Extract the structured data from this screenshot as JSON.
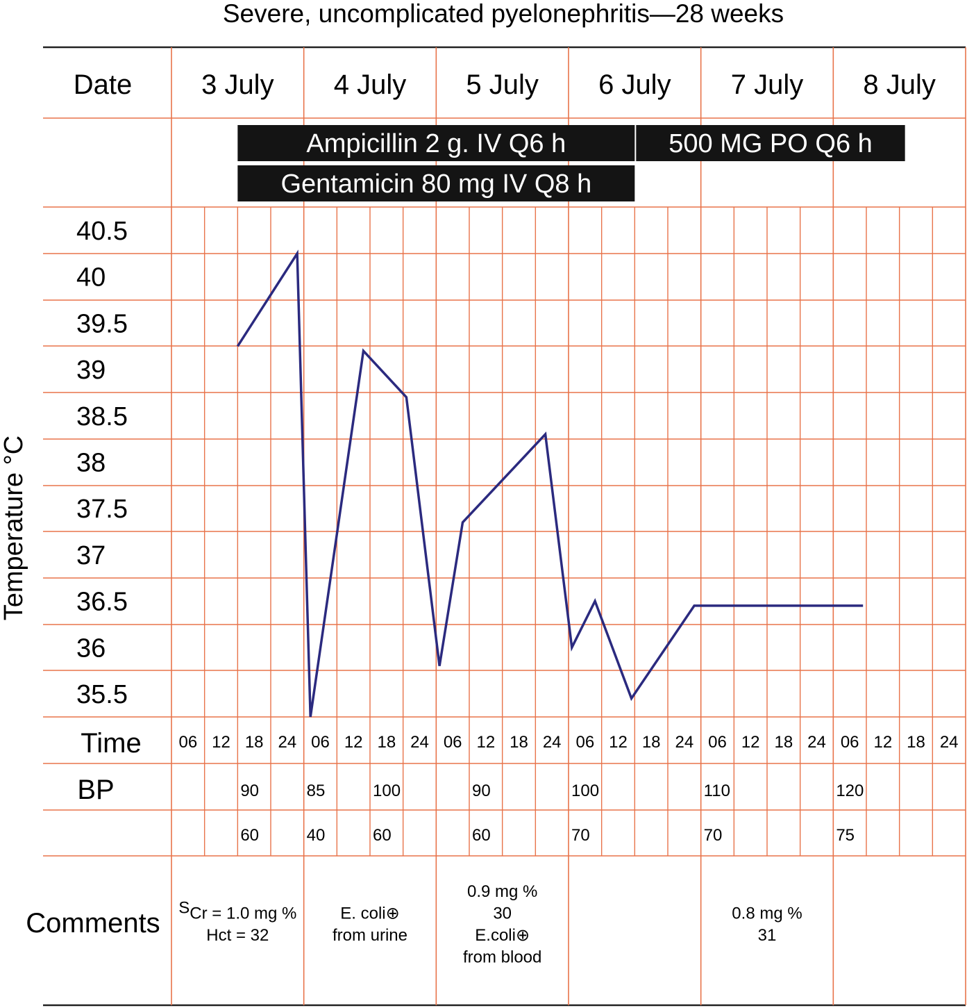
{
  "chart_data": {
    "type": "line",
    "title": "Severe, uncomplicated pyelonephritis—28 weeks",
    "ylabel": "Temperature °C",
    "ylim": [
      35.5,
      40.5
    ],
    "yticks": [
      "40.5",
      "40",
      "39.5",
      "39",
      "38.5",
      "38",
      "37.5",
      "37",
      "36.5",
      "36",
      "35.5"
    ],
    "header_date_label": "Date",
    "dates": [
      "3 July",
      "4 July",
      "5 July",
      "6 July",
      "7 July",
      "8 July"
    ],
    "medications": [
      {
        "label": "Ampicillin 2 g. IV Q6 h",
        "start_slot": 2,
        "end_slot": 14
      },
      {
        "label": "500 MG PO Q6 h",
        "start_slot": 14,
        "end_slot": 22
      },
      {
        "label": "Gentamicin 80 mg IV Q8 h",
        "start_slot": 2,
        "end_slot": 14
      }
    ],
    "time_row_label": "Time",
    "times": [
      "06",
      "12",
      "18",
      "24",
      "06",
      "12",
      "18",
      "24",
      "06",
      "12",
      "18",
      "24",
      "06",
      "12",
      "18",
      "24",
      "06",
      "12",
      "18",
      "24",
      "06",
      "12",
      "18",
      "24"
    ],
    "series": [
      {
        "color": "#2b2a7f",
        "x": [
          2.0,
          3.8,
          4.2,
          5.8,
          7.1,
          8.1,
          8.8,
          11.3,
          12.1,
          12.8,
          13.9,
          15.8,
          20.9
        ],
        "y": [
          39.5,
          40.5,
          35.5,
          39.45,
          38.95,
          36.05,
          37.6,
          38.55,
          36.25,
          36.75,
          35.7,
          36.7,
          36.7
        ]
      }
    ],
    "bp_label": "BP",
    "bp": [
      {
        "slot": 2,
        "systolic": "90",
        "diastolic": "60"
      },
      {
        "slot": 4,
        "systolic": "85",
        "diastolic": "40"
      },
      {
        "slot": 6,
        "systolic": "100",
        "diastolic": "60"
      },
      {
        "slot": 9,
        "systolic": "90",
        "diastolic": "60"
      },
      {
        "slot": 12,
        "systolic": "100",
        "diastolic": "70"
      },
      {
        "slot": 16,
        "systolic": "110",
        "diastolic": "70"
      },
      {
        "slot": 20,
        "systolic": "120",
        "diastolic": "75"
      }
    ],
    "comments_label": "Comments",
    "comments": [
      {
        "day": 0,
        "lines": [
          "Cr = 1.0 mg %",
          "Hct = 32"
        ],
        "subscript_prefix": "S"
      },
      {
        "day": 1,
        "lines": [
          "E. coli⊕",
          "from urine"
        ]
      },
      {
        "day": 2,
        "lines": [
          "0.9 mg %",
          "30",
          "E.coli⊕",
          "from blood"
        ]
      },
      {
        "day": 4,
        "lines": [
          "0.8 mg %",
          "31"
        ]
      }
    ]
  },
  "colors": {
    "grid": "#e8734a",
    "line": "#2b2a7f",
    "med_bar": "#141414",
    "text": "#111111"
  }
}
